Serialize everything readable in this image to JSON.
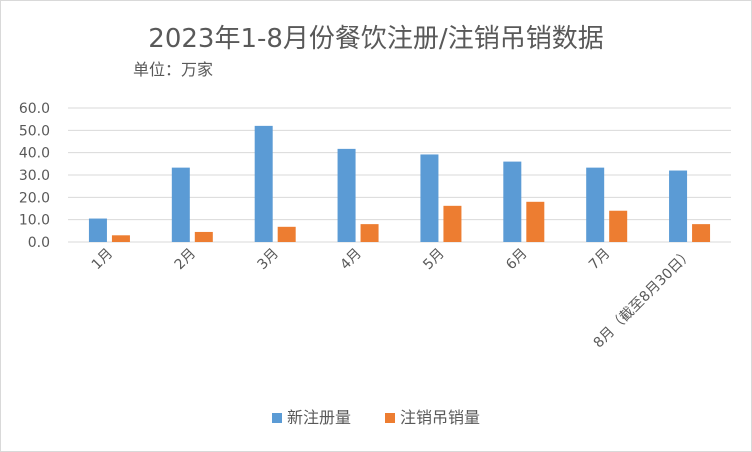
{
  "chart_data": {
    "type": "bar",
    "title": "2023年1-8月份餐饮注册/注销吊销数据",
    "subtitle": "单位：万家",
    "categories": [
      "1月",
      "2月",
      "3月",
      "4月",
      "5月",
      "6月",
      "7月",
      "8月（截至8月30日）"
    ],
    "series": [
      {
        "name": "新注册量",
        "color": "#5b9bd5",
        "values": [
          10.5,
          33.3,
          52.0,
          41.7,
          39.2,
          36.0,
          33.3,
          32.0
        ]
      },
      {
        "name": "注销吊销量",
        "color": "#ed7d31",
        "values": [
          3.0,
          4.5,
          6.8,
          8.0,
          16.2,
          18.0,
          14.0,
          8.0
        ]
      }
    ],
    "yticks": [
      "0.0",
      "10.0",
      "20.0",
      "30.0",
      "40.0",
      "50.0",
      "60.0"
    ],
    "ylim": [
      0,
      60
    ],
    "grid": true,
    "legend": "bottom"
  }
}
